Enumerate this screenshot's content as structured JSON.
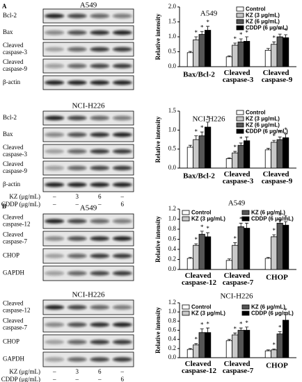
{
  "blots": [
    {
      "panel": "A",
      "cell": "A549",
      "rows": [
        "Bcl-2",
        "Bax",
        "Cleaved caspase-3",
        "Cleaved caspase-9",
        "β-actin"
      ]
    },
    {
      "cell": "NCI-H226",
      "rows": [
        "Bcl-2",
        "Bax",
        "Cleaved caspase-3",
        "Cleaved caspase-9",
        "β-actin"
      ],
      "treatment": [
        {
          "name": "KZ (μg/mL)",
          "lanes": [
            "–",
            "3",
            "6",
            "–"
          ]
        },
        {
          "name": "CDDP (μg/mL)",
          "lanes": [
            "–",
            "–",
            "–",
            "6"
          ]
        }
      ]
    },
    {
      "panel": "B",
      "cell": "A549",
      "rows": [
        "Cleaved caspase-12",
        "Cleaved caspase-7",
        "CHOP",
        "GAPDH"
      ]
    },
    {
      "cell": "NCI-H226",
      "rows": [
        "Cleaved caspase-12",
        "Cleaved caspase-7",
        "CHOP",
        "GAPDH"
      ],
      "treatment": [
        {
          "name": "KZ (μg/mL)",
          "lanes": [
            "–",
            "3",
            "6",
            "–"
          ]
        },
        {
          "name": "CDDP (μg/mL)",
          "lanes": [
            "–",
            "–",
            "–",
            "6"
          ]
        }
      ]
    }
  ],
  "chart_data": [
    {
      "type": "bar",
      "title": "A549",
      "y_label": "Relative intensity",
      "significance_label": "*",
      "legend_columns": 1,
      "categories": [
        "Bax/Bcl-2",
        "Cleaved caspase-3",
        "Cleaved caspase-9"
      ],
      "ylim": [
        0,
        2
      ],
      "yticks": [
        {
          "value": 0,
          "label": "0.0"
        },
        0.5,
        {
          "value": 1,
          "label": "1.0"
        },
        1.5,
        {
          "value": 2,
          "label": "2.0"
        }
      ],
      "series": [
        {
          "name": "Control",
          "color": "#ffffff",
          "values": [
            0.47,
            0.33,
            0.55
          ],
          "errors": [
            0.04,
            0.03,
            0.06
          ]
        },
        {
          "name": "KZ (3 μg/mL)",
          "color": "#c8c8c8",
          "values": [
            0.9,
            0.72,
            0.75
          ],
          "errors": [
            0.1,
            0.07,
            0.08
          ]
        },
        {
          "name": "KZ (6 μg/mL)",
          "color": "#555555",
          "values": [
            1.08,
            0.83,
            1.0
          ],
          "errors": [
            0.1,
            0.1,
            0.09
          ]
        },
        {
          "name": "CDDP (6 μg/mL)",
          "color": "#000000",
          "values": [
            1.22,
            0.85,
            0.97
          ],
          "errors": [
            0.13,
            0.15,
            0.1
          ]
        }
      ]
    },
    {
      "type": "bar",
      "title": "NCI-H226",
      "y_label": "Relative intensity",
      "significance_label": "*",
      "legend_columns": 1,
      "categories": [
        "Bax/Bcl-2",
        "Cleaved caspase-3",
        "Cleaved caspase-9"
      ],
      "ylim": [
        0,
        1.5
      ],
      "yticks": [
        {
          "value": 0,
          "label": "0.0"
        },
        0.5,
        {
          "value": 1,
          "label": "1.0"
        },
        1.5
      ],
      "series": [
        {
          "name": "Control",
          "color": "#ffffff",
          "values": [
            0.55,
            0.25,
            0.48
          ],
          "errors": [
            0.05,
            0.02,
            0.04
          ]
        },
        {
          "name": "KZ (3 μg/mL)",
          "color": "#c8c8c8",
          "values": [
            0.75,
            0.4,
            0.68
          ],
          "errors": [
            0.1,
            0.04,
            0.05
          ]
        },
        {
          "name": "KZ (6 μg/mL)",
          "color": "#555555",
          "values": [
            0.85,
            0.6,
            0.75
          ],
          "errors": [
            0.1,
            0.06,
            0.07
          ]
        },
        {
          "name": "CDDP (6 μg/mL)",
          "color": "#000000",
          "values": [
            1.08,
            0.72,
            0.8
          ],
          "errors": [
            0.13,
            0.1,
            0.1
          ]
        }
      ]
    },
    {
      "type": "bar",
      "title": "A549",
      "y_label": "Relative intensity",
      "significance_label": "*",
      "legend_columns": 2,
      "categories": [
        "Cleaved caspase-12",
        "Cleaved caspase-7",
        "CHOP"
      ],
      "ylim": [
        0,
        1.2
      ],
      "yticks": [
        {
          "value": 0,
          "label": "0.0"
        },
        0.2,
        0.4,
        0.6,
        0.8,
        {
          "value": 1,
          "label": "1.0"
        },
        1.2
      ],
      "series": [
        {
          "name": "Control",
          "color": "#ffffff",
          "values": [
            0.22,
            0.18,
            0.22
          ],
          "errors": [
            0.02,
            0.03,
            0.02
          ]
        },
        {
          "name": "KZ (3 μg/mL)",
          "color": "#c8c8c8",
          "values": [
            0.48,
            0.48,
            0.65
          ],
          "errors": [
            0.03,
            0.05,
            0.04
          ]
        },
        {
          "name": "KZ (6 μg/mL)",
          "color": "#555555",
          "values": [
            0.7,
            0.85,
            0.92
          ],
          "errors": [
            0.06,
            0.07,
            0.07
          ]
        },
        {
          "name": "CDDP (6 μg/mL)",
          "color": "#000000",
          "values": [
            0.65,
            0.82,
            0.88
          ],
          "errors": [
            0.08,
            0.1,
            0.07
          ]
        }
      ]
    },
    {
      "type": "bar",
      "title": "NCI-H226",
      "y_label": "Relative intensity",
      "significance_label": "*",
      "legend_columns": 2,
      "categories": [
        "Cleaved caspase-12",
        "Cleaved caspase-7",
        "CHOP"
      ],
      "ylim": [
        0,
        1.2
      ],
      "yticks": [
        {
          "value": 0,
          "label": "0.0"
        },
        0.2,
        0.4,
        0.6,
        0.8,
        {
          "value": 1,
          "label": "1.0"
        },
        1.2
      ],
      "series": [
        {
          "name": "Control",
          "color": "#ffffff",
          "values": [
            0.18,
            0.37,
            0.15
          ],
          "errors": [
            0.02,
            0.03,
            0.02
          ]
        },
        {
          "name": "KZ (3 μg/mL)",
          "color": "#c8c8c8",
          "values": [
            0.28,
            0.5,
            0.17
          ],
          "errors": [
            0.03,
            0.04,
            0.02
          ]
        },
        {
          "name": "KZ (6 μg/mL)",
          "color": "#555555",
          "values": [
            0.55,
            0.6,
            0.52
          ],
          "errors": [
            0.08,
            0.05,
            0.05
          ]
        },
        {
          "name": "CDDP (6 μg/mL)",
          "color": "#000000",
          "values": [
            0.55,
            0.6,
            0.82
          ],
          "errors": [
            0.1,
            0.07,
            0.12
          ]
        }
      ]
    }
  ]
}
